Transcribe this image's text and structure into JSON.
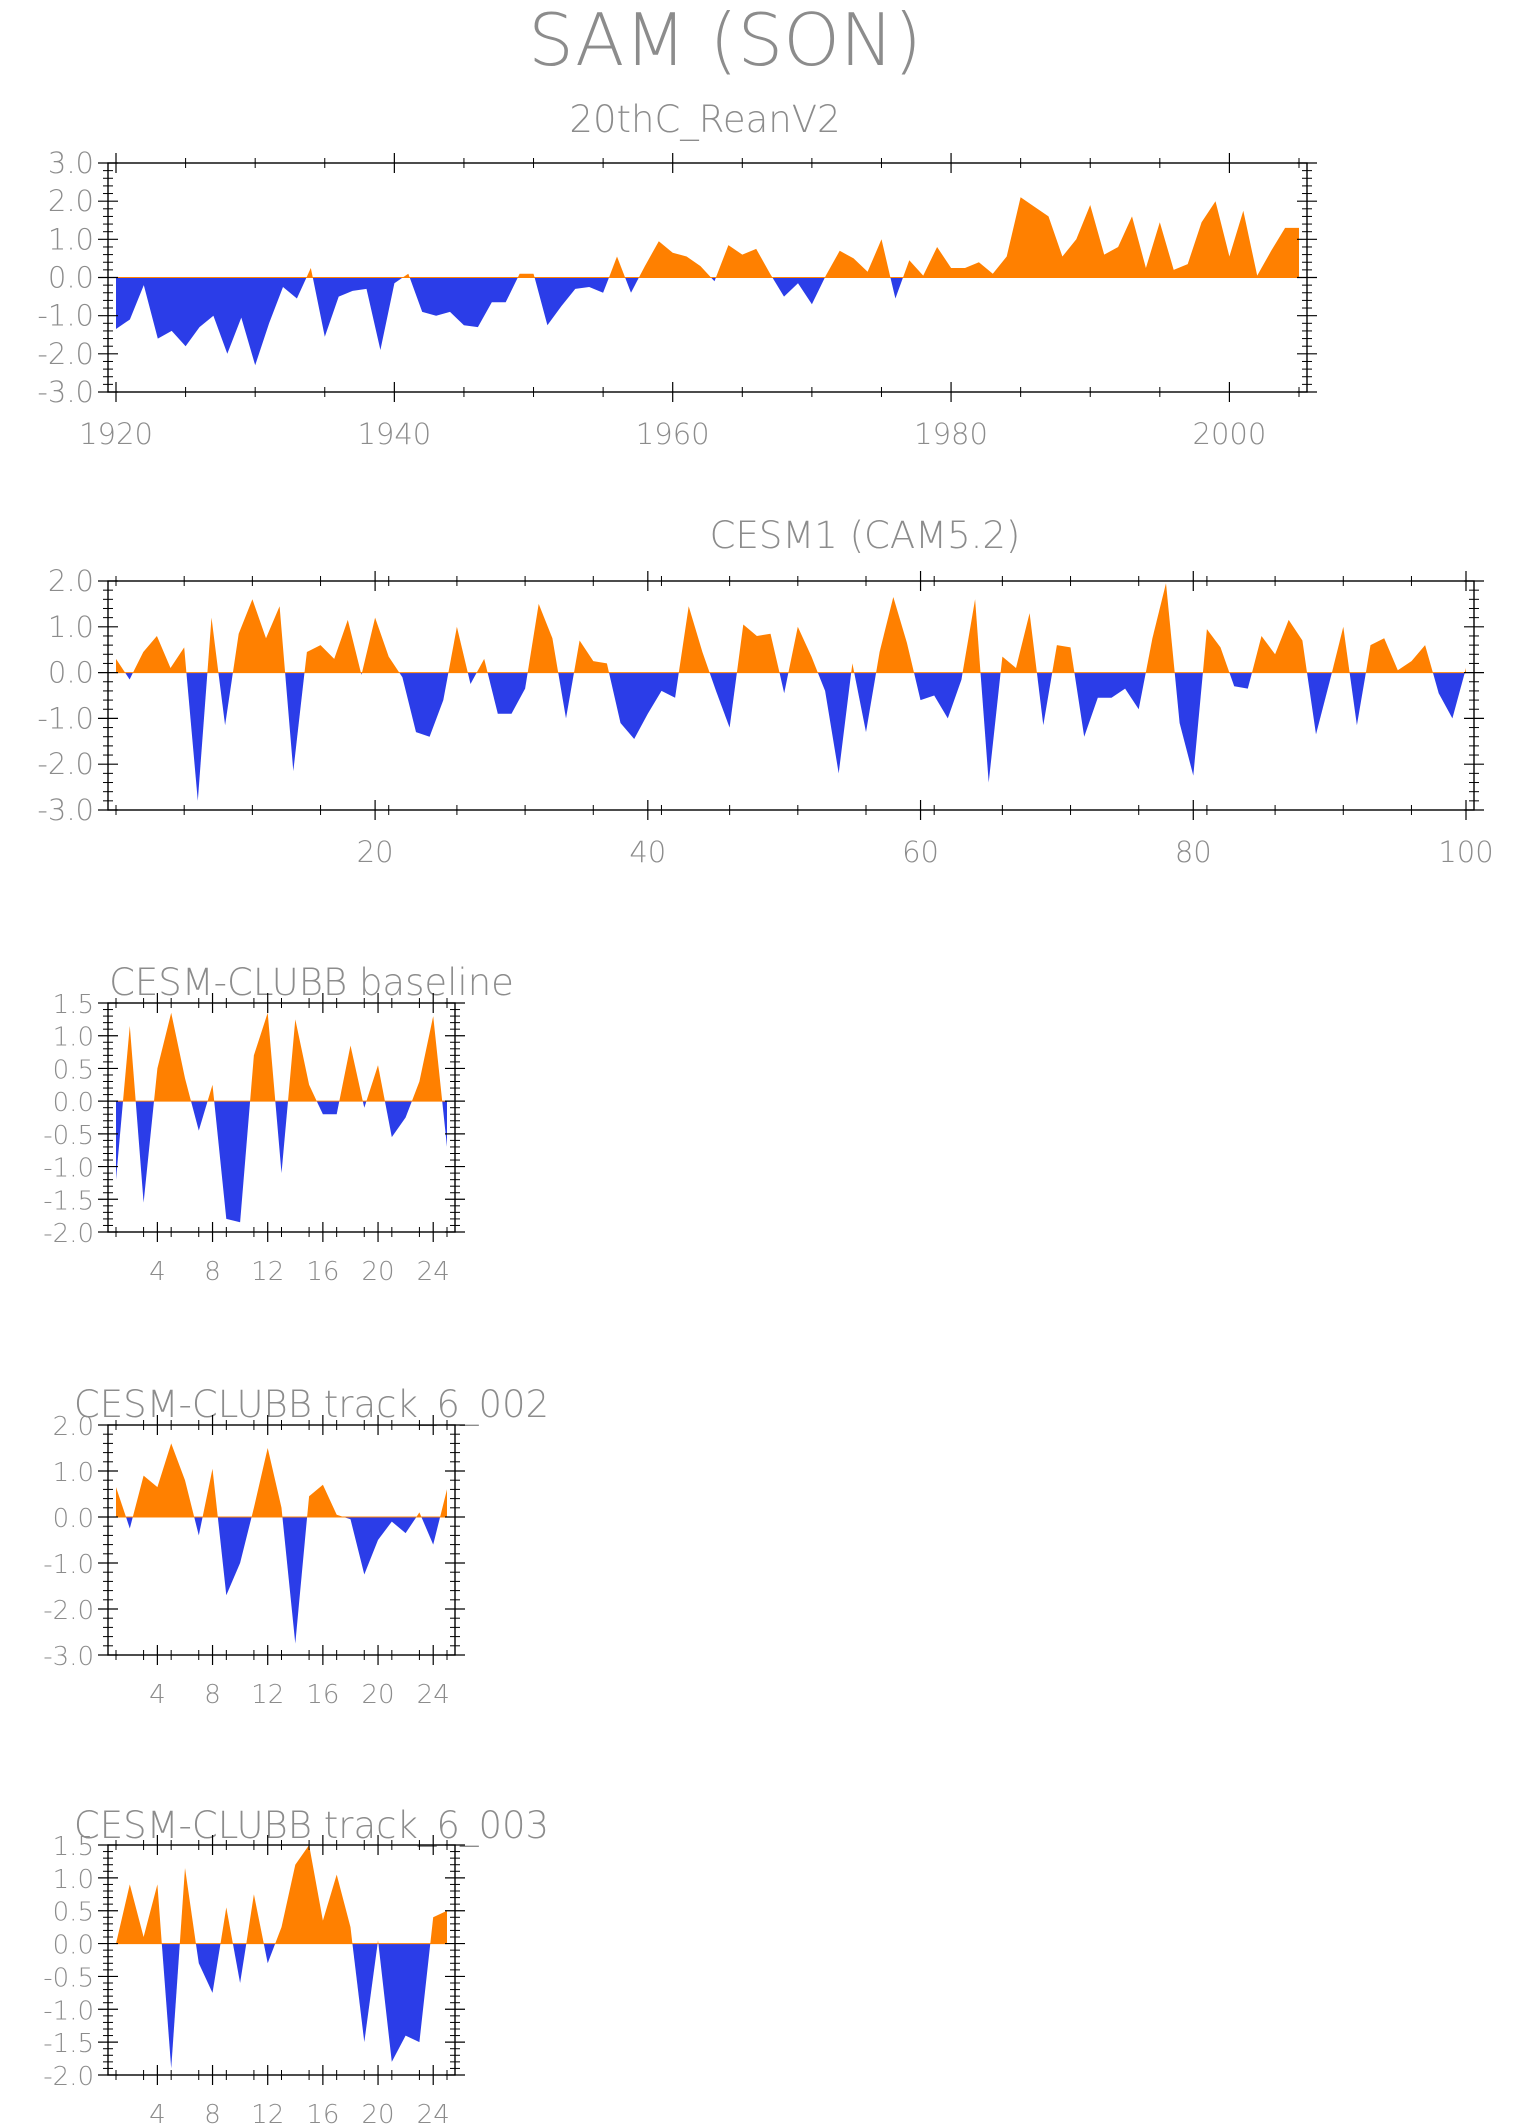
{
  "figure_title": "SAM (SON)",
  "colors": {
    "positive": "#ff8000",
    "negative": "#2b3de8",
    "axis": "#000000",
    "text": "#8c8c8c"
  },
  "chart_data": [
    {
      "type": "area",
      "title": "20thC_ReanV2",
      "xlim": [
        1920,
        2005
      ],
      "ylim": [
        -3.0,
        3.0
      ],
      "y_ticks": [
        "3.0",
        "2.0",
        "1.0",
        "0.0",
        "-1.0",
        "-2.0",
        "-3.0"
      ],
      "y_tick_values": [
        3,
        2,
        1,
        0,
        -1,
        -2,
        -3
      ],
      "x_ticks": [
        "1920",
        "1940",
        "1960",
        "1980",
        "2000"
      ],
      "x_tick_values": [
        1920,
        1940,
        1960,
        1980,
        2000
      ],
      "x_start": 1920,
      "values": [
        -1.35,
        -1.1,
        -0.2,
        -1.6,
        -1.4,
        -1.8,
        -1.3,
        -1.0,
        -2.0,
        -1.05,
        -2.3,
        -1.2,
        -0.25,
        -0.55,
        0.25,
        -1.55,
        -0.5,
        -0.35,
        -0.3,
        -1.9,
        -0.15,
        0.1,
        -0.9,
        -1.0,
        -0.9,
        -1.25,
        -1.3,
        -0.65,
        -0.65,
        0.1,
        0.1,
        -1.25,
        -0.75,
        -0.3,
        -0.25,
        -0.4,
        0.55,
        -0.4,
        0.3,
        0.95,
        0.65,
        0.55,
        0.3,
        -0.1,
        0.85,
        0.6,
        0.75,
        0.1,
        -0.5,
        -0.15,
        -0.7,
        0.05,
        0.7,
        0.5,
        0.15,
        1.0,
        -0.55,
        0.45,
        0.05,
        0.8,
        0.25,
        0.25,
        0.4,
        0.1,
        0.55,
        2.1,
        1.85,
        1.6,
        0.55,
        1.0,
        1.9,
        0.6,
        0.8,
        1.6,
        0.25,
        1.45,
        0.2,
        0.35,
        1.45,
        2.0,
        0.55,
        1.75,
        0.05,
        0.7,
        1.3,
        1.3
      ]
    },
    {
      "type": "area",
      "title": "CESM1 (CAM5.2)",
      "xlim": [
        1,
        100
      ],
      "ylim": [
        -3.0,
        2.0
      ],
      "y_ticks": [
        "2.0",
        "1.0",
        "0.0",
        "-1.0",
        "-2.0",
        "-3.0"
      ],
      "y_tick_values": [
        2,
        1,
        0,
        -1,
        -2,
        -3
      ],
      "x_ticks": [
        "20",
        "40",
        "60",
        "80",
        "100"
      ],
      "x_tick_values": [
        20,
        40,
        60,
        80,
        100
      ],
      "x_start": 1,
      "values": [
        0.3,
        -0.15,
        0.45,
        0.8,
        0.1,
        0.55,
        -2.8,
        1.2,
        -1.15,
        0.85,
        1.6,
        0.75,
        1.45,
        -2.15,
        0.45,
        0.6,
        0.3,
        1.15,
        -0.05,
        1.2,
        0.35,
        -0.1,
        -1.3,
        -1.4,
        -0.6,
        1.0,
        -0.25,
        0.3,
        -0.9,
        -0.9,
        -0.35,
        1.5,
        0.75,
        -1.0,
        0.7,
        0.25,
        0.2,
        -1.1,
        -1.45,
        -0.9,
        -0.4,
        -0.55,
        1.45,
        0.45,
        -0.4,
        -1.2,
        1.05,
        0.8,
        0.85,
        -0.45,
        1.0,
        0.35,
        -0.4,
        -2.2,
        0.2,
        -1.3,
        0.45,
        1.65,
        0.65,
        -0.6,
        -0.5,
        -1.0,
        -0.15,
        1.6,
        -2.4,
        0.35,
        0.1,
        1.3,
        -1.15,
        0.6,
        0.55,
        -1.4,
        -0.55,
        -0.55,
        -0.35,
        -0.8,
        0.75,
        1.95,
        -1.1,
        -2.25,
        0.95,
        0.55,
        -0.3,
        -0.35,
        0.8,
        0.4,
        1.15,
        0.7,
        -1.35,
        -0.2,
        1.0,
        -1.15,
        0.6,
        0.75,
        0.05,
        0.25,
        0.6,
        -0.45,
        -1.0,
        0.1
      ]
    },
    {
      "type": "area",
      "title": "CESM-CLUBB baseline",
      "xlim": [
        1,
        25
      ],
      "ylim": [
        -2.0,
        1.5
      ],
      "y_ticks": [
        "1.5",
        "1.0",
        "0.5",
        "0.0",
        "-0.5",
        "-1.0",
        "-1.5",
        "-2.0"
      ],
      "y_tick_values": [
        1.5,
        1.0,
        0.5,
        0.0,
        -0.5,
        -1.0,
        -1.5,
        -2.0
      ],
      "x_ticks": [
        "4",
        "8",
        "12",
        "16",
        "20",
        "24"
      ],
      "x_tick_values": [
        4,
        8,
        12,
        16,
        20,
        24
      ],
      "x_start": 1,
      "values": [
        -1.2,
        1.15,
        -1.55,
        0.5,
        1.35,
        0.35,
        -0.45,
        0.25,
        -1.8,
        -1.85,
        0.7,
        1.35,
        -1.1,
        1.25,
        0.25,
        -0.2,
        -0.2,
        0.85,
        -0.1,
        0.55,
        -0.55,
        -0.25,
        0.3,
        1.3,
        -0.7
      ]
    },
    {
      "type": "area",
      "title": "CESM-CLUBB track_6_002",
      "xlim": [
        1,
        25
      ],
      "ylim": [
        -3.0,
        2.0
      ],
      "y_ticks": [
        "2.0",
        "1.0",
        "0.0",
        "-1.0",
        "-2.0",
        "-3.0"
      ],
      "y_tick_values": [
        2,
        1,
        0,
        -1,
        -2,
        -3
      ],
      "x_ticks": [
        "4",
        "8",
        "12",
        "16",
        "20",
        "24"
      ],
      "x_tick_values": [
        4,
        8,
        12,
        16,
        20,
        24
      ],
      "x_start": 1,
      "values": [
        0.65,
        -0.25,
        0.9,
        0.65,
        1.6,
        0.8,
        -0.4,
        1.05,
        -1.7,
        -1.0,
        0.2,
        1.5,
        0.2,
        -2.75,
        0.45,
        0.7,
        0.05,
        -0.05,
        -1.25,
        -0.5,
        -0.1,
        -0.35,
        0.1,
        -0.6,
        0.6
      ]
    },
    {
      "type": "area",
      "title": "CESM-CLUBB track_6_003",
      "xlim": [
        1,
        25
      ],
      "ylim": [
        -2.0,
        1.5
      ],
      "y_ticks": [
        "1.5",
        "1.0",
        "0.5",
        "0.0",
        "-0.5",
        "-1.0",
        "-1.5",
        "-2.0"
      ],
      "y_tick_values": [
        1.5,
        1.0,
        0.5,
        0.0,
        -0.5,
        -1.0,
        -1.5,
        -2.0
      ],
      "x_ticks": [
        "4",
        "8",
        "12",
        "16",
        "20",
        "24"
      ],
      "x_tick_values": [
        4,
        8,
        12,
        16,
        20,
        24
      ],
      "x_start": 1,
      "values": [
        0.0,
        0.9,
        0.1,
        0.9,
        -1.9,
        1.15,
        -0.3,
        -0.75,
        0.55,
        -0.6,
        0.75,
        -0.3,
        0.25,
        1.2,
        1.5,
        0.35,
        1.05,
        0.25,
        -1.5,
        0.05,
        -1.8,
        -1.4,
        -1.5,
        0.4,
        0.5
      ]
    }
  ]
}
